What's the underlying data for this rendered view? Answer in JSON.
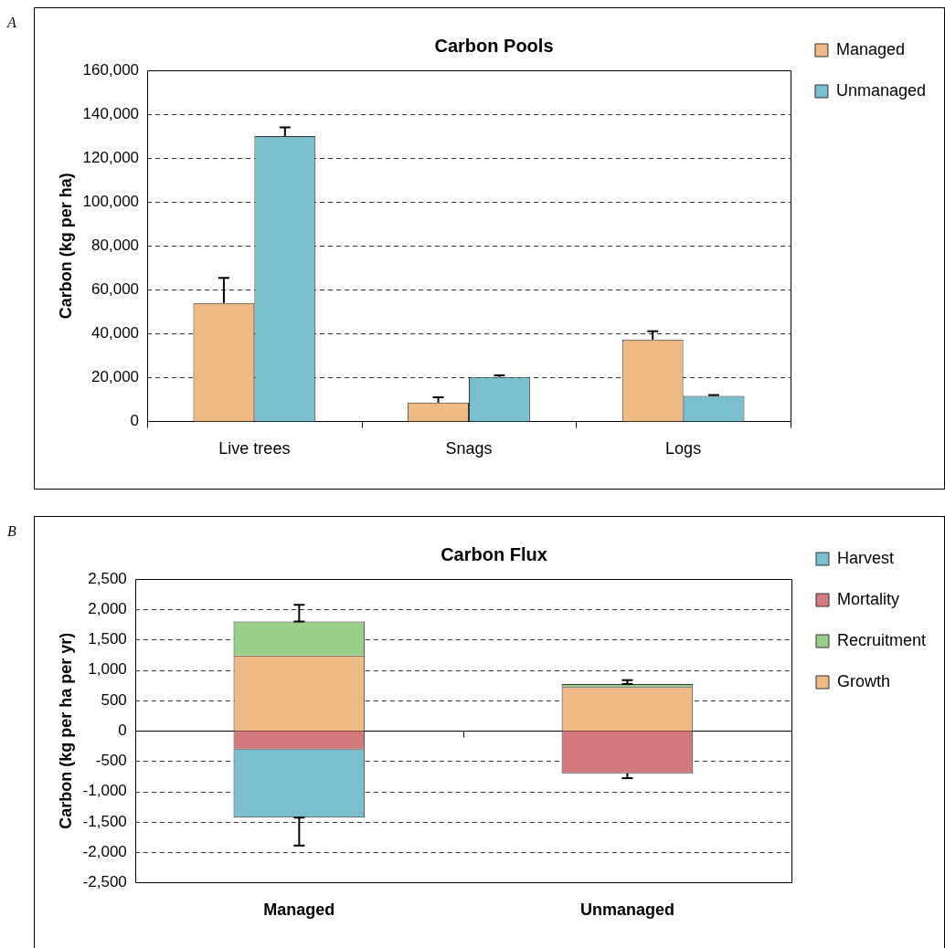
{
  "chart_data": [
    {
      "type": "bar",
      "title": "Carbon Pools",
      "ylabel": "Carbon (kg per ha)",
      "annotations": [
        "A"
      ],
      "categories": [
        "Live trees",
        "Snags",
        "Logs"
      ],
      "series": [
        {
          "name": "Managed",
          "color": "#edb985",
          "values": [
            54000,
            8600,
            37300
          ],
          "errors": [
            [
              54000,
              65400
            ],
            [
              8600,
              11000
            ],
            [
              37300,
              41100
            ]
          ]
        },
        {
          "name": "Unmanaged",
          "color": "#7bbfcf",
          "values": [
            130000,
            20200,
            11600
          ],
          "errors": [
            [
              130000,
              134000
            ],
            [
              20200,
              21000
            ],
            [
              11600,
              12000
            ]
          ]
        }
      ],
      "ylim": [
        0,
        160000
      ],
      "yticks": [
        {
          "value": 0,
          "label": "0"
        },
        {
          "value": 20000,
          "label": "20,000"
        },
        {
          "value": 40000,
          "label": "40,000"
        },
        {
          "value": 60000,
          "label": "60,000"
        },
        {
          "value": 80000,
          "label": "80,000"
        },
        {
          "value": 100000,
          "label": "100,000"
        },
        {
          "value": 120000,
          "label": "120,000"
        },
        {
          "value": 140000,
          "label": "140,000"
        },
        {
          "value": 160000,
          "label": "160,000"
        }
      ],
      "grid": "y",
      "legend": "right"
    },
    {
      "type": "bar",
      "title": "Carbon Flux",
      "ylabel": "Carbon (kg per ha per yr)",
      "annotations": [
        "B"
      ],
      "categories": [
        "Managed",
        "Unmanaged"
      ],
      "stacked": true,
      "series": [
        {
          "name": "Growth",
          "color": "#edb985",
          "values": [
            1240,
            720
          ]
        },
        {
          "name": "Recruitment",
          "color": "#9acf8a",
          "values": [
            560,
            50
          ],
          "errors": [
            [
              1800,
              2075
            ],
            [
              770,
              835
            ]
          ]
        },
        {
          "name": "Mortality",
          "color": "#d27a7d",
          "values": [
            -310,
            -700
          ],
          "errors": [
            null,
            [
              -780,
              -700
            ]
          ]
        },
        {
          "name": "Harvest",
          "color": "#7bbfcf",
          "values": [
            -1120,
            0
          ],
          "errors": [
            [
              -1890,
              -1430
            ],
            null
          ]
        }
      ],
      "ylim": [
        -2500,
        2500
      ],
      "yticks": [
        {
          "value": -2500,
          "label": "-2,500"
        },
        {
          "value": -2000,
          "label": "-2,000"
        },
        {
          "value": -1500,
          "label": "-1,500"
        },
        {
          "value": -1000,
          "label": "-1,000"
        },
        {
          "value": -500,
          "label": "-500"
        },
        0,
        500,
        {
          "value": 1000,
          "label": "1,000"
        },
        {
          "value": 1500,
          "label": "1,500"
        },
        {
          "value": 2000,
          "label": "2,000"
        },
        {
          "value": 2500,
          "label": "2,500"
        }
      ],
      "grid": "y",
      "legend": "right"
    }
  ]
}
